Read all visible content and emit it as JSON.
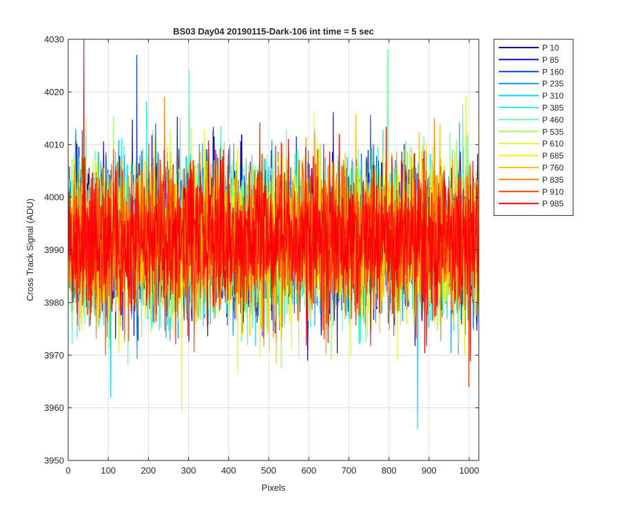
{
  "chart_data": {
    "type": "line",
    "title": "BS03 Day04 20190115-Dark-106 int time = 5 sec",
    "xlabel": "Pixels",
    "ylabel": "Cross Track Signal (ADU)",
    "xlim": [
      0,
      1024
    ],
    "ylim": [
      3950,
      4030
    ],
    "xticks": [
      0,
      100,
      200,
      300,
      400,
      500,
      600,
      700,
      800,
      900,
      1000
    ],
    "yticks": [
      3950,
      3960,
      3970,
      3980,
      3990,
      4000,
      4010,
      4020,
      4030
    ],
    "grid": true,
    "legend_position": "outside-right",
    "noise_center": 3992,
    "noise_sigma": 7,
    "series": [
      {
        "name": "P 10",
        "color": "#00008f"
      },
      {
        "name": "P 85",
        "color": "#0000e6"
      },
      {
        "name": "P 160",
        "color": "#0041ff"
      },
      {
        "name": "P 235",
        "color": "#0096ff"
      },
      {
        "name": "P 310",
        "color": "#00d5ff"
      },
      {
        "name": "P 385",
        "color": "#1fffe0"
      },
      {
        "name": "P 460",
        "color": "#5cffa3"
      },
      {
        "name": "P 535",
        "color": "#99ff66"
      },
      {
        "name": "P 610",
        "color": "#d5ff2a"
      },
      {
        "name": "P 685",
        "color": "#ffee00"
      },
      {
        "name": "P 760",
        "color": "#ffbf00"
      },
      {
        "name": "P 835",
        "color": "#ff8000"
      },
      {
        "name": "P 910",
        "color": "#ff4000"
      },
      {
        "name": "P 985",
        "color": "#ff0000"
      }
    ],
    "extreme_points": [
      {
        "series": "P 985",
        "x": 38,
        "y": 4030
      },
      {
        "series": "P 160",
        "x": 170,
        "y": 4027
      },
      {
        "series": "P 460",
        "x": 795,
        "y": 4028
      },
      {
        "series": "P 460",
        "x": 300,
        "y": 4024
      },
      {
        "series": "P 685",
        "x": 282,
        "y": 3959
      },
      {
        "series": "P 310",
        "x": 870,
        "y": 3956
      },
      {
        "series": "P 310",
        "x": 105,
        "y": 3962
      },
      {
        "series": "P 910",
        "x": 998,
        "y": 3964
      }
    ]
  }
}
